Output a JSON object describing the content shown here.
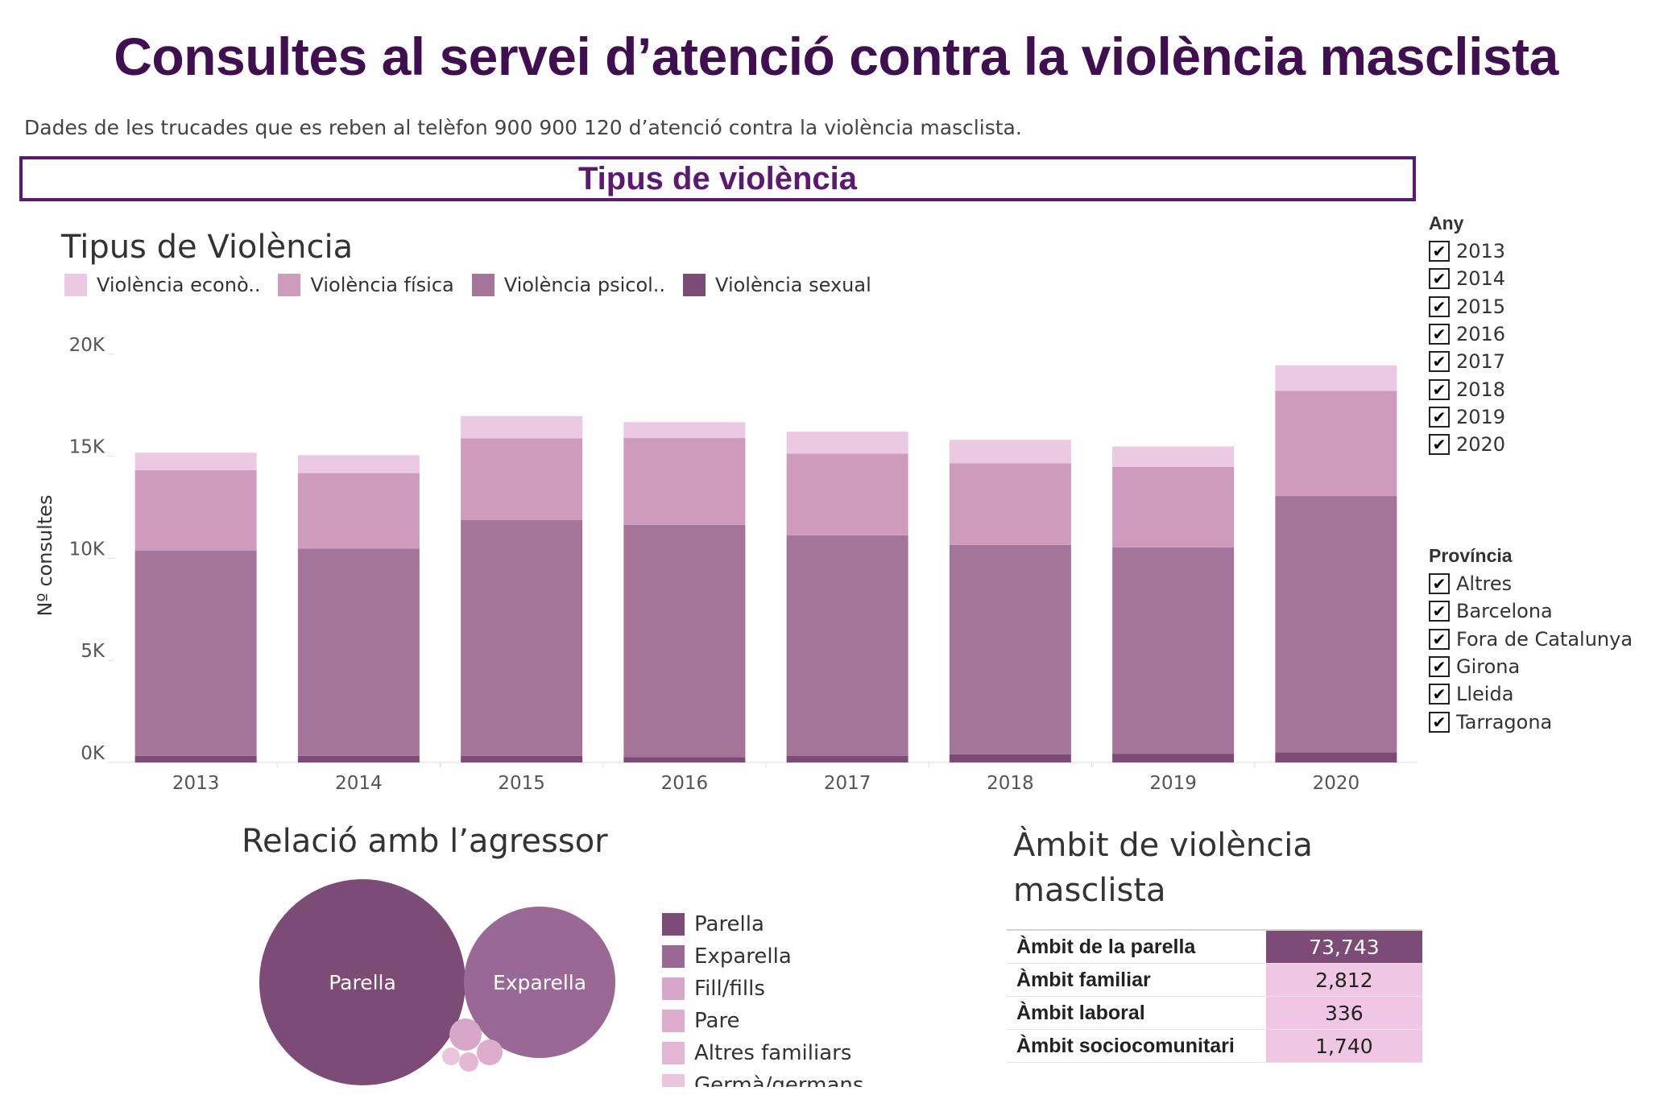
{
  "header": {
    "title": "Consultes al servei d’atenció contra la violència masclista",
    "subtitle": "Dades de les trucades que es reben al telèfon 900 900 120 d’atenció contra la violència masclista."
  },
  "section": {
    "label": "Tipus de violència"
  },
  "colors": {
    "economica": "#ecc9e3",
    "fisica": "#cf9bbd",
    "psicologica": "#a57499",
    "sexual": "#7c4c77"
  },
  "chart_data": [
    {
      "type": "bar",
      "stacked": true,
      "title": "Tipus de Violència",
      "xlabel": "",
      "ylabel": "Nº consultes",
      "ylim": [
        0,
        21000
      ],
      "yticks": [
        0,
        5000,
        10000,
        15000,
        20000
      ],
      "ytick_labels": [
        "0K",
        "5K",
        "10K",
        "15K",
        "20K"
      ],
      "categories": [
        "2013",
        "2014",
        "2015",
        "2016",
        "2017",
        "2018",
        "2019",
        "2020"
      ],
      "legend_position": "top-left",
      "series": [
        {
          "name": "Violència sexual",
          "color": "#7c4c77",
          "values": [
            320,
            320,
            320,
            260,
            330,
            400,
            430,
            500
          ]
        },
        {
          "name": "Violència psicol..",
          "color": "#a57499",
          "values": [
            10050,
            10150,
            11550,
            11380,
            10800,
            10250,
            10100,
            12550
          ]
        },
        {
          "name": "Violència física",
          "color": "#cf9bbd",
          "values": [
            3950,
            3700,
            4000,
            4250,
            4000,
            4000,
            3950,
            5150
          ]
        },
        {
          "name": "Violència econò..",
          "color": "#ecc9e3",
          "values": [
            850,
            880,
            1100,
            780,
            1070,
            1150,
            1000,
            1250
          ]
        }
      ]
    },
    {
      "type": "bubble",
      "title": "Relació amb l’agressor",
      "series": [
        {
          "name": "Parella",
          "color": "#7c4c77",
          "label": "Parella"
        },
        {
          "name": "Exparella",
          "color": "#9a6894",
          "label": "Exparella"
        },
        {
          "name": "Fill/fills",
          "color": "#d8a6c8",
          "label": ""
        },
        {
          "name": "Pare",
          "color": "#deaccd",
          "label": ""
        },
        {
          "name": "Altres familiars",
          "color": "#e3b8d5",
          "label": ""
        },
        {
          "name": "Germà/germans",
          "color": "#e8c4dd",
          "label": ""
        }
      ]
    },
    {
      "type": "table",
      "title": "Àmbit de violència masclista",
      "rows": [
        {
          "label": "Àmbit de la parella",
          "value": "73,743",
          "color": "#7c4c77"
        },
        {
          "label": "Àmbit familiar",
          "value": "2,812",
          "color": "#efc6e3"
        },
        {
          "label": "Àmbit laboral",
          "value": "336",
          "color": "#efc6e3"
        },
        {
          "label": "Àmbit sociocomunitari",
          "value": "1,740",
          "color": "#efc6e3"
        }
      ]
    }
  ],
  "legend_top": [
    {
      "label": "Violència econò..",
      "color": "#ecc9e3"
    },
    {
      "label": "Violència física",
      "color": "#cf9bbd"
    },
    {
      "label": "Violència psicol..",
      "color": "#a57499"
    },
    {
      "label": "Violència sexual",
      "color": "#7c4c77"
    }
  ],
  "filters": {
    "any": {
      "title": "Any",
      "items": [
        "2013",
        "2014",
        "2015",
        "2016",
        "2017",
        "2018",
        "2019",
        "2020"
      ],
      "check_glyph": "✔"
    },
    "provincia": {
      "title": "Província",
      "items": [
        "Altres",
        "Barcelona",
        "Fora de Catalunya",
        "Girona",
        "Lleida",
        "Tarragona"
      ],
      "check_glyph": "✔"
    }
  }
}
